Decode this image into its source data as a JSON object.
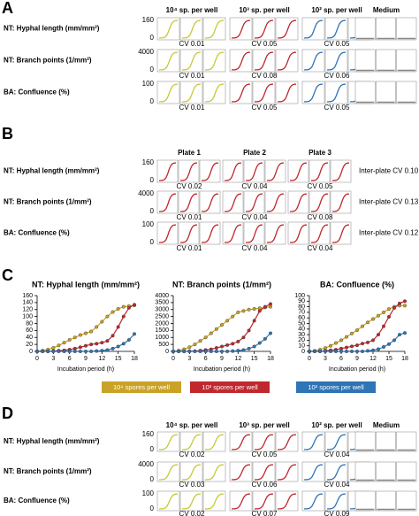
{
  "panel_labels": [
    "A",
    "B",
    "C",
    "D"
  ],
  "panel_a": {
    "columns": [
      "10⁴ sp. per well",
      "10³ sp. per well",
      "10² sp. per well",
      "Medium"
    ],
    "rows": [
      {
        "label": "NT: Hyphal length (mm/mm²)",
        "ymax": 160,
        "ymin": 0,
        "cv": [
          "CV 0.01",
          "CV 0.05",
          "CV 0.05"
        ]
      },
      {
        "label": "NT: Branch points (1/mm²)",
        "ymax": 4000,
        "ymin": 0,
        "cv": [
          "CV 0.01",
          "CV 0.08",
          "CV 0.06"
        ]
      },
      {
        "label": "BA: Confluence (%)",
        "ymax": 100,
        "ymin": 0,
        "cv": [
          "CV 0.01",
          "CV 0.05",
          "CV 0.05"
        ]
      }
    ]
  },
  "panel_b": {
    "columns": [
      "Plate 1",
      "Plate 2",
      "Plate 3"
    ],
    "rows": [
      {
        "label": "NT: Hyphal length (mm/mm²)",
        "ymax": 160,
        "ymin": 0,
        "cv": [
          "CV 0.02",
          "CV 0.04",
          "CV 0.05"
        ],
        "inter_plate": "Inter-plate CV 0.10"
      },
      {
        "label": "NT: Branch points (1/mm²)",
        "ymax": 4000,
        "ymin": 0,
        "cv": [
          "CV 0.01",
          "CV 0.04",
          "CV 0.08"
        ],
        "inter_plate": "Inter-plate CV 0.13"
      },
      {
        "label": "BA: Confluence (%)",
        "ymax": 100,
        "ymin": 0,
        "cv": [
          "CV 0.01",
          "CV 0.04",
          "CV 0.04"
        ],
        "inter_plate": "Inter-plate CV 0.12"
      }
    ]
  },
  "chart_data": [
    {
      "type": "line",
      "title": "NT: Hyphal length (mm/mm²)",
      "x_label": "Incubation period (h)",
      "x": [
        0,
        1,
        2,
        3,
        4,
        5,
        6,
        7,
        8,
        9,
        10,
        11,
        12,
        13,
        14,
        15,
        16,
        17,
        18
      ],
      "xlim": [
        0,
        18
      ],
      "xticks": [
        0,
        3,
        6,
        9,
        12,
        15,
        18
      ],
      "ylim": [
        0,
        160
      ],
      "yticks": [
        0,
        20,
        40,
        60,
        80,
        100,
        120,
        140,
        160
      ],
      "series": [
        {
          "name": "10⁴ spores per well",
          "color": "#c9a227",
          "values": [
            0,
            2,
            5,
            10,
            17,
            25,
            33,
            40,
            47,
            52,
            57,
            70,
            85,
            100,
            113,
            122,
            128,
            130,
            132
          ]
        },
        {
          "name": "10³ spores per well",
          "color": "#c0282d",
          "values": [
            0,
            0,
            0,
            1,
            2,
            3,
            5,
            8,
            12,
            16,
            20,
            22,
            25,
            30,
            45,
            70,
            100,
            125,
            134
          ]
        },
        {
          "name": "10² spores per well",
          "color": "#2e75b6",
          "values": [
            0,
            0,
            0,
            0,
            0,
            0,
            0,
            0,
            0,
            0,
            0,
            1,
            2,
            4,
            8,
            14,
            22,
            33,
            50
          ]
        }
      ]
    },
    {
      "type": "line",
      "title": "NT: Branch points (1/mm²)",
      "x_label": "Incubation period (h)",
      "x": [
        0,
        1,
        2,
        3,
        4,
        5,
        6,
        7,
        8,
        9,
        10,
        11,
        12,
        13,
        14,
        15,
        16,
        17,
        18
      ],
      "xlim": [
        0,
        18
      ],
      "xticks": [
        0,
        3,
        6,
        9,
        12,
        15,
        18
      ],
      "ylim": [
        0,
        4000
      ],
      "yticks": [
        0,
        500,
        1000,
        1500,
        2000,
        2500,
        3000,
        3500,
        4000
      ],
      "series": [
        {
          "name": "10⁴ spores per well",
          "color": "#c9a227",
          "values": [
            0,
            50,
            150,
            300,
            500,
            750,
            1000,
            1300,
            1600,
            1900,
            2200,
            2500,
            2800,
            2900,
            3000,
            3050,
            3100,
            3150,
            3200
          ]
        },
        {
          "name": "10³ spores per well",
          "color": "#c0282d",
          "values": [
            0,
            0,
            0,
            10,
            20,
            50,
            100,
            150,
            250,
            350,
            450,
            550,
            700,
            1000,
            1500,
            2200,
            2900,
            3200,
            3400
          ]
        },
        {
          "name": "10² spores per well",
          "color": "#2e75b6",
          "values": [
            0,
            0,
            0,
            0,
            0,
            0,
            0,
            0,
            0,
            0,
            0,
            20,
            50,
            100,
            200,
            350,
            600,
            900,
            1300
          ]
        }
      ]
    },
    {
      "type": "line",
      "title": "BA: Confluence (%)",
      "x_label": "Incubation period (h)",
      "x": [
        0,
        1,
        2,
        3,
        4,
        5,
        6,
        7,
        8,
        9,
        10,
        11,
        12,
        13,
        14,
        15,
        16,
        17,
        18
      ],
      "xlim": [
        0,
        18
      ],
      "xticks": [
        0,
        3,
        6,
        9,
        12,
        15,
        18
      ],
      "ylim": [
        0,
        100
      ],
      "yticks": [
        0,
        10,
        20,
        30,
        40,
        50,
        60,
        70,
        80,
        90,
        100
      ],
      "series": [
        {
          "name": "10⁴ spores per well",
          "color": "#c9a227",
          "values": [
            0,
            1,
            3,
            6,
            10,
            15,
            20,
            26,
            32,
            38,
            45,
            52,
            58,
            64,
            70,
            76,
            80,
            82,
            82
          ]
        },
        {
          "name": "10³ spores per well",
          "color": "#c0282d",
          "values": [
            0,
            0,
            0,
            1,
            2,
            3,
            5,
            7,
            9,
            11,
            14,
            16,
            20,
            30,
            45,
            62,
            78,
            86,
            90
          ]
        },
        {
          "name": "10² spores per well",
          "color": "#2e75b6",
          "values": [
            0,
            0,
            0,
            0,
            0,
            0,
            0,
            0,
            0,
            0,
            0,
            1,
            2,
            4,
            8,
            13,
            20,
            30,
            33
          ]
        }
      ]
    }
  ],
  "panel_d": {
    "columns": [
      "10⁴ sp. per well",
      "10³ sp. per well",
      "10² sp. per well",
      "Medium"
    ],
    "rows": [
      {
        "label": "NT: Hyphal length (mm/mm²)",
        "ymax": 160,
        "ymin": 0,
        "cv": [
          "CV 0.02",
          "CV 0.05",
          "CV 0.04"
        ]
      },
      {
        "label": "NT: Branch points (1/mm²)",
        "ymax": 4000,
        "ymin": 0,
        "cv": [
          "CV 0.03",
          "CV 0.06",
          "CV 0.04"
        ]
      },
      {
        "label": "BA: Confluence (%)",
        "ymax": 100,
        "ymin": 0,
        "cv": [
          "CV 0.02",
          "CV 0.07",
          "CV 0.09"
        ]
      }
    ]
  }
}
